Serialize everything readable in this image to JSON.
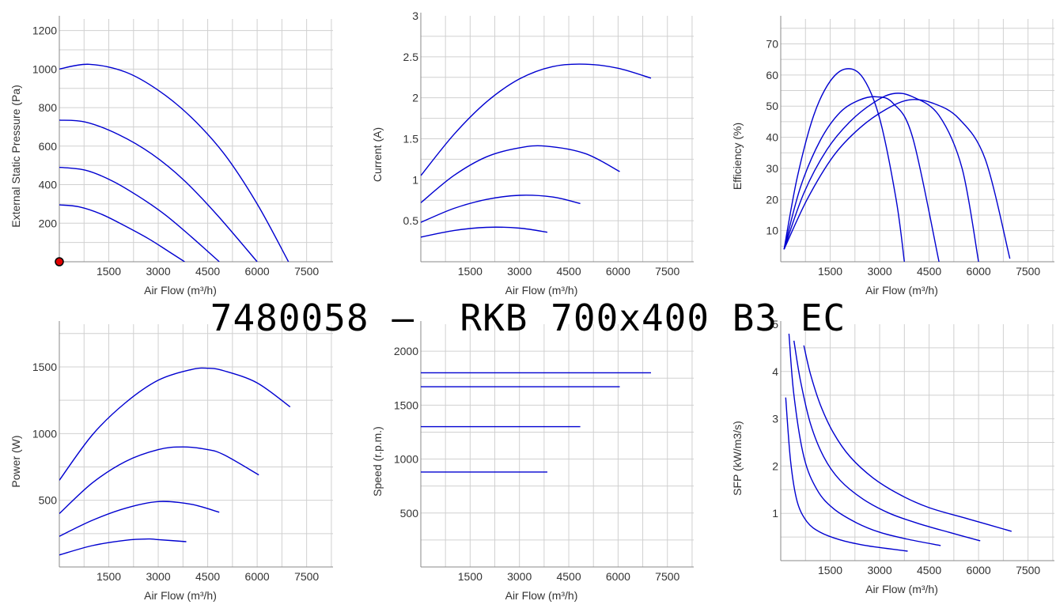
{
  "title": "7480058 –  RKB 700x400 B3 EC",
  "colors": {
    "curve": "#0000d0",
    "grid": "#d0d0d0",
    "axis": "#888888",
    "marker": "#e00000"
  },
  "chart_data": [
    {
      "type": "line",
      "xlabel": "Air Flow (m³/h)",
      "ylabel": "External Static Pressure (Pa)",
      "xlim": [
        0,
        8300
      ],
      "ylim": [
        0,
        1260
      ],
      "xticks": [
        "1500",
        "3000",
        "4500",
        "6000",
        "7500"
      ],
      "yticks": [
        "200",
        "400",
        "600",
        "800",
        "1000",
        "1200"
      ],
      "marker": {
        "x": 0,
        "y": 0
      },
      "series": [
        {
          "x": [
            0,
            900,
            2000,
            3000,
            4000,
            5000,
            6000,
            6950
          ],
          "y": [
            1000,
            1025,
            985,
            890,
            750,
            560,
            300,
            0
          ]
        },
        {
          "x": [
            0,
            800,
            1800,
            2800,
            3800,
            4800,
            6000
          ],
          "y": [
            735,
            725,
            660,
            560,
            420,
            240,
            0
          ]
        },
        {
          "x": [
            0,
            800,
            1600,
            2400,
            3200,
            4000,
            4850
          ],
          "y": [
            490,
            475,
            420,
            340,
            245,
            130,
            0
          ]
        },
        {
          "x": [
            0,
            600,
            1300,
            2000,
            2700,
            3300,
            3800
          ],
          "y": [
            295,
            285,
            245,
            185,
            120,
            55,
            0
          ]
        }
      ]
    },
    {
      "type": "line",
      "xlabel": "Air Flow (m³/h)",
      "ylabel": "Current (A)",
      "xlim": [
        0,
        8300
      ],
      "ylim": [
        0,
        3
      ],
      "xticks": [
        "1500",
        "3000",
        "4500",
        "6000",
        "7500"
      ],
      "yticks": [
        "0.5",
        "1",
        "1.5",
        "2",
        "2.5",
        "3"
      ],
      "series": [
        {
          "x": [
            0,
            1000,
            2000,
            3000,
            4000,
            5000,
            6000,
            7000
          ],
          "y": [
            1.05,
            1.55,
            1.95,
            2.23,
            2.38,
            2.41,
            2.36,
            2.24
          ]
        },
        {
          "x": [
            0,
            1000,
            2000,
            3000,
            3800,
            5000,
            6050
          ],
          "y": [
            0.72,
            1.05,
            1.28,
            1.39,
            1.41,
            1.32,
            1.1
          ]
        },
        {
          "x": [
            0,
            1000,
            2000,
            3000,
            4000,
            4850
          ],
          "y": [
            0.48,
            0.65,
            0.76,
            0.81,
            0.79,
            0.71
          ]
        },
        {
          "x": [
            0,
            1000,
            2000,
            3000,
            3850
          ],
          "y": [
            0.3,
            0.38,
            0.42,
            0.41,
            0.36
          ]
        }
      ]
    },
    {
      "type": "line",
      "xlabel": "Air Flow (m³/h)",
      "ylabel": "Efficiency (%)",
      "xlim": [
        0,
        8300
      ],
      "ylim": [
        0,
        78
      ],
      "xticks": [
        "1500",
        "3000",
        "4500",
        "6000",
        "7500"
      ],
      "yticks": [
        "10",
        "20",
        "30",
        "40",
        "50",
        "60",
        "70"
      ],
      "series": [
        {
          "x": [
            100,
            500,
            1000,
            1500,
            2000,
            2500,
            3000,
            3500,
            3750
          ],
          "y": [
            4,
            27,
            47,
            58,
            62,
            59,
            46,
            20,
            0
          ]
        },
        {
          "x": [
            100,
            600,
            1200,
            1800,
            2400,
            2900,
            3400,
            4000,
            4800
          ],
          "y": [
            4,
            24,
            39,
            48,
            52,
            53,
            51,
            40,
            0
          ]
        },
        {
          "x": [
            100,
            700,
            1400,
            2100,
            2800,
            3400,
            4000,
            4800,
            5500,
            6000
          ],
          "y": [
            4,
            22,
            36,
            45,
            51,
            54,
            53,
            47,
            30,
            0
          ]
        },
        {
          "x": [
            100,
            800,
            1600,
            2400,
            3200,
            3900,
            4600,
            5400,
            6200,
            6950
          ],
          "y": [
            4,
            20,
            34,
            43,
            49,
            52,
            51,
            46,
            33,
            1
          ]
        }
      ]
    },
    {
      "type": "line",
      "xlabel": "Air Flow (m³/h)",
      "ylabel": "Power (W)",
      "xlim": [
        0,
        8300
      ],
      "ylim": [
        0,
        1820
      ],
      "xticks": [
        "1500",
        "3000",
        "4500",
        "6000",
        "7500"
      ],
      "yticks": [
        "500",
        "1000",
        "1500"
      ],
      "series": [
        {
          "x": [
            0,
            1000,
            2000,
            3000,
            4000,
            4500,
            5000,
            6000,
            7000
          ],
          "y": [
            650,
            990,
            1230,
            1400,
            1480,
            1490,
            1470,
            1380,
            1200
          ]
        },
        {
          "x": [
            0,
            1000,
            2000,
            3000,
            3750,
            4500,
            5000,
            6050
          ],
          "y": [
            400,
            630,
            790,
            880,
            900,
            880,
            840,
            690
          ]
        },
        {
          "x": [
            0,
            1000,
            2000,
            3000,
            4000,
            4850
          ],
          "y": [
            230,
            350,
            440,
            490,
            470,
            410
          ]
        },
        {
          "x": [
            0,
            1000,
            2000,
            2700,
            3000,
            3850
          ],
          "y": [
            90,
            160,
            200,
            210,
            205,
            190
          ]
        }
      ]
    },
    {
      "type": "line",
      "xlabel": "Air Flow (m³/h)",
      "ylabel": "Speed (r.p.m.)",
      "xlim": [
        0,
        8300
      ],
      "ylim": [
        0,
        2250
      ],
      "xticks": [
        "1500",
        "3000",
        "4500",
        "6000",
        "7500"
      ],
      "yticks": [
        "500",
        "1000",
        "1500",
        "2000"
      ],
      "series": [
        {
          "x": [
            0,
            7000
          ],
          "y": [
            1800,
            1800
          ]
        },
        {
          "x": [
            0,
            6050
          ],
          "y": [
            1670,
            1670
          ]
        },
        {
          "x": [
            0,
            4850
          ],
          "y": [
            1300,
            1300
          ]
        },
        {
          "x": [
            0,
            3850
          ],
          "y": [
            880,
            880
          ]
        }
      ]
    },
    {
      "type": "line",
      "xlabel": "Air Flow (m³/h)",
      "ylabel": "SFP (kW/m3/s)",
      "xlim": [
        0,
        8300
      ],
      "ylim": [
        0,
        5
      ],
      "xticks": [
        "1500",
        "3000",
        "4500",
        "6000",
        "7500"
      ],
      "yticks": [
        "1",
        "2",
        "3",
        "4",
        "5"
      ],
      "series": [
        {
          "x": [
            150,
            300,
            500,
            800,
            1200,
            1800,
            2500,
            3200,
            3850
          ],
          "y": [
            3.45,
            2.1,
            1.25,
            0.82,
            0.6,
            0.44,
            0.33,
            0.26,
            0.2
          ]
        },
        {
          "x": [
            250,
            400,
            700,
            1100,
            1600,
            2300,
            3000,
            3800,
            4850
          ],
          "y": [
            4.8,
            3.5,
            2.2,
            1.5,
            1.1,
            0.8,
            0.6,
            0.46,
            0.32
          ]
        },
        {
          "x": [
            400,
            600,
            900,
            1300,
            1800,
            2500,
            3300,
            4200,
            5100,
            6050
          ],
          "y": [
            4.65,
            3.8,
            2.9,
            2.2,
            1.7,
            1.3,
            1.0,
            0.78,
            0.6,
            0.42
          ]
        },
        {
          "x": [
            700,
            900,
            1200,
            1600,
            2100,
            2800,
            3600,
            4500,
            5700,
            7000
          ],
          "y": [
            4.55,
            3.95,
            3.3,
            2.7,
            2.2,
            1.75,
            1.4,
            1.12,
            0.88,
            0.62
          ]
        }
      ]
    }
  ]
}
